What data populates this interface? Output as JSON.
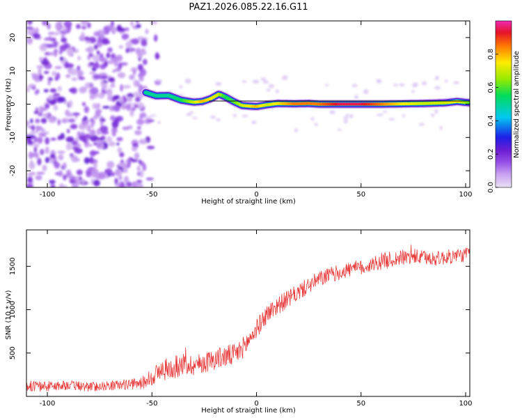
{
  "chart_data": [
    {
      "type": "heatmap",
      "title": "PAZ1.2026.085.22.16.G11",
      "xlabel": "Height of straight line (km)",
      "ylabel": "Frequency (Hz)",
      "xlim": [
        -110,
        102
      ],
      "ylim": [
        -25,
        25
      ],
      "xticks": [
        -100,
        -50,
        0,
        50,
        100
      ],
      "xtick_labels": [
        "-100",
        "-50",
        "0",
        "50",
        "100"
      ],
      "yticks": [
        -20,
        -10,
        0,
        10,
        20
      ],
      "ytick_labels": [
        "-20",
        "-10",
        "0",
        "10",
        "20"
      ],
      "colorbar": {
        "label": "Normalized spectral amplitude",
        "range": [
          0,
          1
        ],
        "ticks": [
          0.0,
          0.2,
          0.4,
          0.6,
          0.8
        ],
        "tick_labels": [
          "0.0",
          "0.2",
          "0.4",
          "0.6",
          "0.8"
        ]
      },
      "ridge": {
        "description": "dominant frequency track",
        "x": [
          -53,
          -48,
          -42,
          -36,
          -30,
          -26,
          -22,
          -18,
          -15,
          -11,
          -7,
          -3,
          0,
          5,
          10,
          18,
          25,
          30,
          40,
          50,
          60,
          70,
          80,
          90,
          96,
          102
        ],
        "freq": [
          3.5,
          2.5,
          2.6,
          1.2,
          0.6,
          0.8,
          1.6,
          3.0,
          2.2,
          0.8,
          -0.4,
          -0.6,
          -0.7,
          -0.2,
          0.2,
          0.1,
          0.2,
          0.0,
          0.0,
          0.0,
          0.0,
          0.1,
          0.2,
          0.4,
          0.8,
          0.4
        ],
        "amplitude": [
          0.35,
          0.4,
          0.5,
          0.55,
          0.7,
          0.8,
          0.75,
          0.7,
          0.55,
          0.6,
          0.7,
          0.75,
          0.8,
          0.7,
          0.75,
          0.85,
          0.85,
          0.85,
          0.95,
          0.95,
          0.85,
          0.75,
          0.7,
          0.7,
          0.75,
          0.6
        ]
      },
      "noise_region": {
        "x_from": -110,
        "x_to": -53,
        "freq_from": -25,
        "freq_to": 25,
        "amplitude_range": [
          0.02,
          0.15
        ]
      }
    },
    {
      "type": "line",
      "title": "",
      "xlabel": "Height of straight line (km)",
      "ylabel": "SNR (10 * v/v)",
      "xlim": [
        -110,
        102
      ],
      "ylim": [
        0,
        1920
      ],
      "xticks": [
        -100,
        -50,
        0,
        50,
        100
      ],
      "xtick_labels": [
        "-100",
        "-50",
        "0",
        "50",
        "100"
      ],
      "yticks": [
        500,
        1000,
        1500
      ],
      "ytick_labels": [
        "500",
        "1000",
        "1500"
      ],
      "series": [
        {
          "name": "SNR",
          "color": "#e83a3a",
          "x": [
            -110,
            -100,
            -90,
            -80,
            -70,
            -60,
            -55,
            -50,
            -45,
            -40,
            -35,
            -30,
            -25,
            -20,
            -15,
            -10,
            -5,
            0,
            5,
            10,
            15,
            20,
            25,
            30,
            35,
            40,
            45,
            50,
            55,
            60,
            65,
            70,
            75,
            80,
            85,
            90,
            95,
            102
          ],
          "values": [
            120,
            115,
            130,
            110,
            125,
            140,
            150,
            230,
            300,
            330,
            370,
            360,
            390,
            430,
            460,
            480,
            600,
            780,
            950,
            1050,
            1120,
            1200,
            1280,
            1350,
            1400,
            1430,
            1470,
            1480,
            1520,
            1560,
            1580,
            1600,
            1610,
            1600,
            1590,
            1600,
            1620,
            1640
          ],
          "noise": [
            60,
            60,
            55,
            55,
            55,
            60,
            70,
            110,
            130,
            130,
            130,
            120,
            120,
            120,
            130,
            130,
            120,
            110,
            110,
            110,
            100,
            100,
            95,
            95,
            90,
            90,
            90,
            90,
            90,
            95,
            95,
            90,
            90,
            85,
            85,
            85,
            85,
            85
          ]
        }
      ]
    }
  ]
}
